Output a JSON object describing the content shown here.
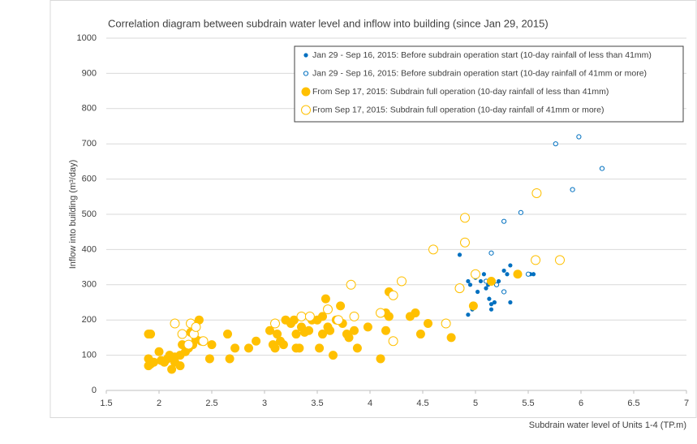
{
  "chart_data": {
    "type": "scatter",
    "title": "Correlation diagram between subdrain water level and inflow into building (since Jan 29, 2015)",
    "x_label": "Subdrain water level of Units 1-4 (TP.m)",
    "y_label": "Inflow into building (m³/day)",
    "xlim": [
      1.5,
      7
    ],
    "ylim": [
      0,
      1000
    ],
    "xticks": [
      1.5,
      2,
      2.5,
      3,
      3.5,
      4,
      4.5,
      5,
      5.5,
      6,
      6.5,
      7
    ],
    "yticks": [
      0,
      100,
      200,
      300,
      400,
      500,
      600,
      700,
      800,
      900,
      1000
    ],
    "grid": true,
    "legend": "upper right",
    "series": [
      {
        "name": "Jan 29 - Sep 16, 2015: Before subdrain operation start (10-day rainfall of less than 41mm)",
        "color": "#0070c0",
        "filled": true,
        "marker_size": 2.6,
        "x": [
          4.85,
          4.93,
          4.95,
          4.93,
          4.97,
          5.0,
          5.02,
          5.05,
          5.08,
          5.1,
          5.12,
          5.13,
          5.15,
          5.15,
          5.18,
          5.2,
          5.22,
          5.27,
          5.3,
          5.33,
          5.33,
          5.52,
          5.55
        ],
        "values": [
          385,
          310,
          300,
          215,
          230,
          320,
          280,
          310,
          330,
          290,
          300,
          260,
          245,
          230,
          250,
          300,
          310,
          340,
          330,
          355,
          250,
          330,
          330
        ]
      },
      {
        "name": "Jan 29 - Sep 16, 2015: Before subdrain operation start (10-day rainfall of 41mm or more)",
        "color": "#0070c0",
        "filled": false,
        "marker_size": 2.6,
        "x": [
          5.0,
          5.1,
          5.15,
          5.2,
          5.27,
          5.27,
          5.43,
          5.5,
          5.76,
          5.92,
          5.98,
          6.2
        ],
        "values": [
          330,
          310,
          390,
          300,
          480,
          280,
          505,
          330,
          700,
          570,
          720,
          630
        ]
      },
      {
        "name": "From Sep 17, 2015: Subdrain full operation (10-day rainfall of less than 41mm)",
        "color": "#ffc000",
        "filled": true,
        "marker_size": 5.5,
        "x": [
          1.9,
          1.92,
          1.9,
          1.92,
          1.95,
          1.9,
          2.0,
          2.02,
          2.05,
          2.08,
          2.1,
          2.12,
          2.15,
          2.15,
          2.2,
          2.2,
          2.22,
          2.25,
          2.28,
          2.3,
          2.32,
          2.35,
          2.38,
          2.4,
          2.48,
          2.5,
          2.65,
          2.67,
          2.72,
          2.85,
          2.92,
          3.05,
          3.08,
          3.1,
          3.12,
          3.15,
          3.18,
          3.2,
          3.25,
          3.28,
          3.3,
          3.3,
          3.33,
          3.35,
          3.38,
          3.42,
          3.5,
          3.52,
          3.55,
          3.58,
          3.55,
          3.6,
          3.62,
          3.65,
          3.68,
          3.72,
          3.74,
          3.78,
          3.8,
          3.85,
          3.88,
          4.1,
          4.15,
          4.18,
          4.18,
          4.38,
          4.43,
          4.48,
          4.55,
          4.77,
          4.98,
          5.15,
          5.4,
          3.98,
          4.15,
          3.45
        ],
        "values": [
          160,
          160,
          90,
          75,
          80,
          70,
          110,
          85,
          80,
          90,
          100,
          60,
          95,
          80,
          70,
          100,
          130,
          110,
          120,
          165,
          130,
          145,
          200,
          140,
          90,
          130,
          160,
          90,
          120,
          120,
          140,
          170,
          130,
          120,
          160,
          140,
          130,
          200,
          190,
          200,
          160,
          120,
          120,
          180,
          165,
          170,
          200,
          120,
          210,
          260,
          160,
          180,
          170,
          100,
          200,
          240,
          190,
          160,
          150,
          170,
          120,
          90,
          170,
          210,
          280,
          210,
          220,
          160,
          190,
          150,
          240,
          310,
          330,
          180,
          220,
          200
        ]
      },
      {
        "name": "From Sep 17, 2015: Subdrain full operation (10-day rainfall of 41mm or more)",
        "color": "#ffc000",
        "filled": false,
        "marker_size": 5.5,
        "x": [
          2.15,
          2.22,
          2.28,
          2.3,
          2.33,
          2.35,
          2.42,
          3.1,
          3.35,
          3.43,
          3.6,
          3.7,
          3.82,
          3.85,
          4.1,
          4.22,
          4.22,
          4.3,
          4.6,
          4.9,
          4.9,
          4.85,
          5.58,
          5.57,
          5.8,
          5.0,
          4.72
        ],
        "values": [
          190,
          160,
          130,
          190,
          160,
          180,
          140,
          190,
          210,
          210,
          230,
          200,
          300,
          210,
          220,
          270,
          140,
          310,
          400,
          490,
          420,
          290,
          560,
          370,
          370,
          330,
          190
        ]
      }
    ]
  }
}
